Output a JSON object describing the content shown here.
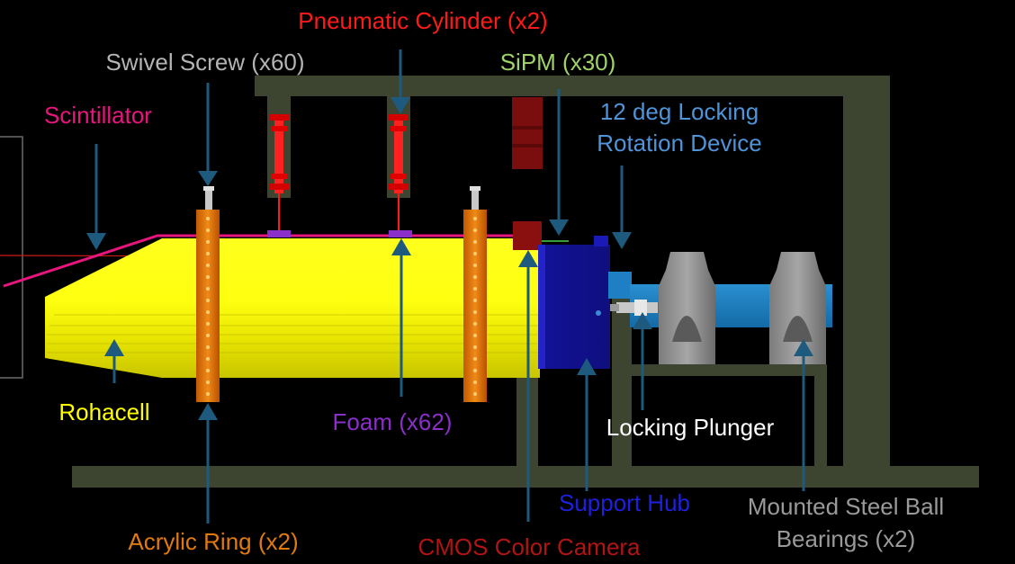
{
  "labels": {
    "pneumatic_cylinder": "Pneumatic Cylinder (x2)",
    "swivel_screw": "Swivel Screw (x60)",
    "sipm": "SiPM (x30)",
    "scintillator": "Scintillator",
    "locking_rotation_line1": "12 deg Locking",
    "locking_rotation_line2": "Rotation Device",
    "rohacell": "Rohacell",
    "foam": "Foam (x62)",
    "locking_plunger": "Locking Plunger",
    "support_hub": "Support Hub",
    "mounted_bearings_line1": "Mounted Steel Ball",
    "mounted_bearings_line2": "Bearings (x2)",
    "acrylic_ring": "Acrylic Ring (x2)",
    "cmos_camera": "CMOS Color Camera"
  },
  "colors": {
    "background": "#000000",
    "frame": "#3d4531",
    "arrow": "#1d5a7e",
    "pneumatic": "#ff1a1a",
    "swivel": "#b4b4b4",
    "sipm": "#9fd36a",
    "scintillator": "#e8157f",
    "locking_rotation": "#4f93d8",
    "rohacell": "#ffff00",
    "foam": "#8a2fc9",
    "locking_plunger": "#ffffff",
    "support_hub": "#1f1fe0",
    "bearings": "#9a9a9a",
    "acrylic": "#e07a10",
    "cmos": "#b11414"
  }
}
